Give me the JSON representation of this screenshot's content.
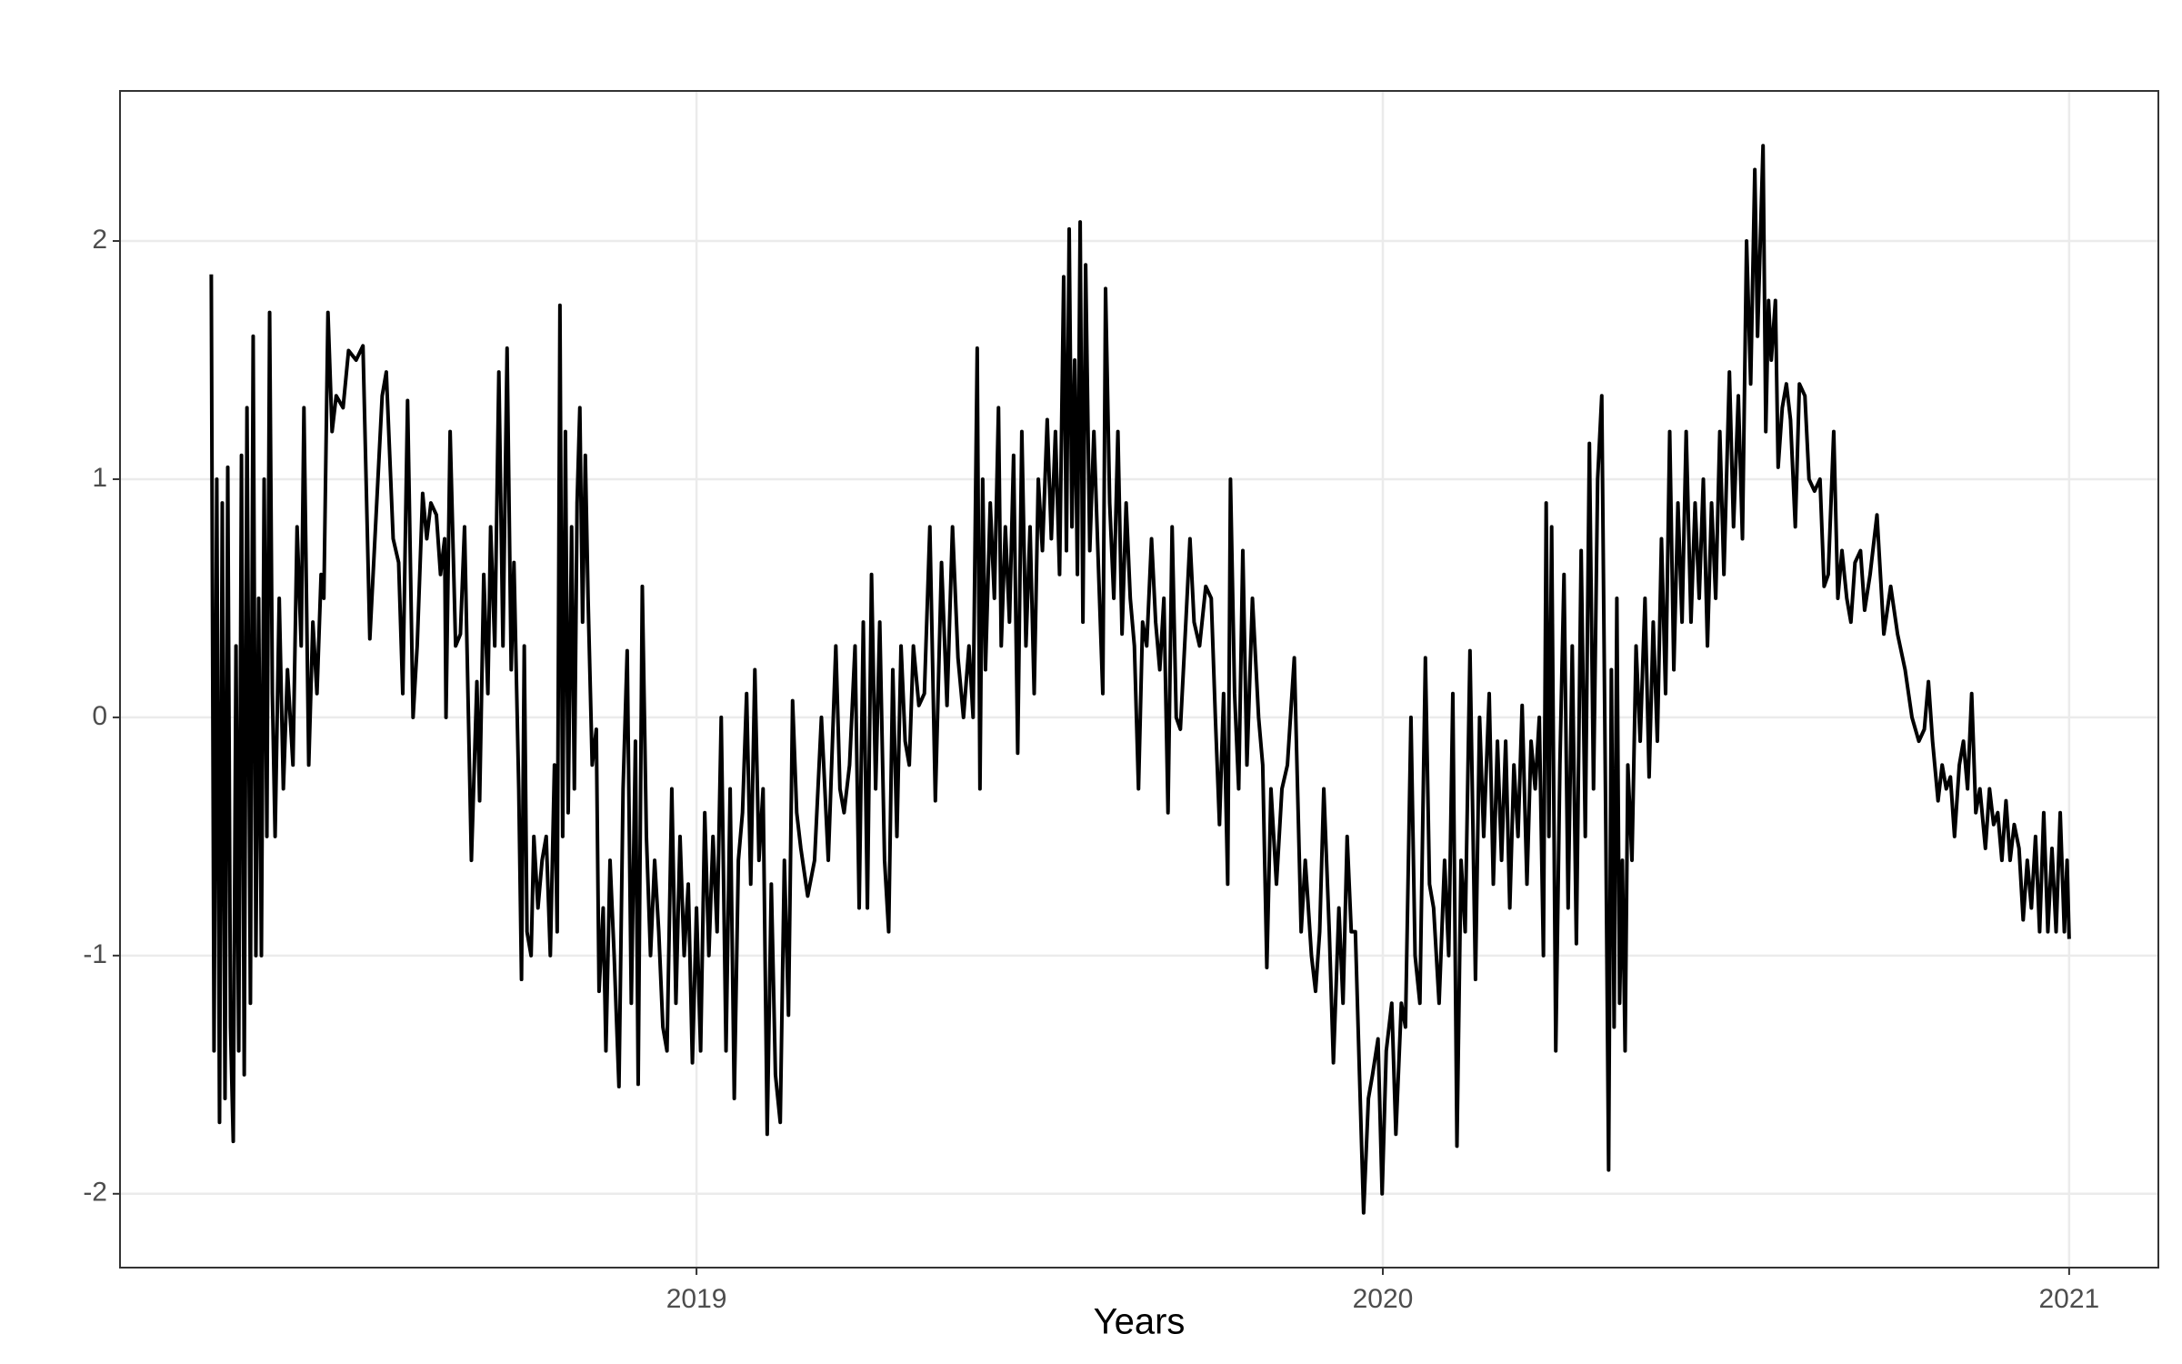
{
  "chart_data": {
    "type": "line",
    "x_label": "Years",
    "x": [
      2018.293,
      2018.297,
      2018.301,
      2018.305,
      2018.309,
      2018.313,
      2018.317,
      2018.321,
      2018.325,
      2018.329,
      2018.333,
      2018.337,
      2018.341,
      2018.345,
      2018.35,
      2018.354,
      2018.358,
      2018.362,
      2018.366,
      2018.37,
      2018.374,
      2018.378,
      2018.382,
      2018.386,
      2018.392,
      2018.398,
      2018.404,
      2018.412,
      2018.418,
      2018.424,
      2018.428,
      2018.435,
      2018.441,
      2018.447,
      2018.453,
      2018.457,
      2018.463,
      2018.469,
      2018.475,
      2018.485,
      2018.493,
      2018.504,
      2018.514,
      2018.524,
      2018.542,
      2018.548,
      2018.558,
      2018.566,
      2018.572,
      2018.579,
      2018.587,
      2018.593,
      2018.601,
      2018.607,
      2018.613,
      2018.621,
      2018.627,
      2018.633,
      2018.635,
      2018.641,
      2018.649,
      2018.656,
      2018.662,
      2018.672,
      2018.68,
      2018.684,
      2018.69,
      2018.696,
      2018.7,
      2018.706,
      2018.712,
      2018.718,
      2018.724,
      2018.73,
      2018.734,
      2018.741,
      2018.745,
      2018.749,
      2018.753,
      2018.759,
      2018.763,
      2018.769,
      2018.775,
      2018.781,
      2018.787,
      2018.793,
      2018.797,
      2018.801,
      2018.805,
      2018.809,
      2018.813,
      2018.818,
      2018.822,
      2018.826,
      2018.83,
      2018.834,
      2018.838,
      2018.842,
      2018.848,
      2018.854,
      2018.858,
      2018.864,
      2018.868,
      2018.874,
      2018.88,
      2018.887,
      2018.893,
      2018.899,
      2018.905,
      2018.911,
      2018.915,
      2018.921,
      2018.927,
      2018.933,
      2018.939,
      2018.945,
      2018.951,
      2018.957,
      2018.964,
      2018.97,
      2018.976,
      2018.982,
      2018.988,
      2018.994,
      2019.0,
      2019.006,
      2019.012,
      2019.018,
      2019.024,
      2019.03,
      2019.036,
      2019.043,
      2019.049,
      2019.055,
      2019.061,
      2019.067,
      2019.073,
      2019.079,
      2019.085,
      2019.091,
      2019.097,
      2019.103,
      2019.109,
      2019.115,
      2019.122,
      2019.128,
      2019.134,
      2019.14,
      2019.146,
      2019.152,
      2019.162,
      2019.172,
      2019.182,
      2019.192,
      2019.203,
      2019.209,
      2019.215,
      2019.223,
      2019.231,
      2019.237,
      2019.243,
      2019.249,
      2019.255,
      2019.261,
      2019.267,
      2019.274,
      2019.28,
      2019.286,
      2019.292,
      2019.298,
      2019.304,
      2019.31,
      2019.316,
      2019.324,
      2019.332,
      2019.34,
      2019.348,
      2019.357,
      2019.365,
      2019.373,
      2019.381,
      2019.389,
      2019.397,
      2019.403,
      2019.409,
      2019.413,
      2019.417,
      2019.421,
      2019.428,
      2019.434,
      2019.44,
      2019.444,
      2019.45,
      2019.456,
      2019.462,
      2019.468,
      2019.474,
      2019.48,
      2019.486,
      2019.492,
      2019.498,
      2019.504,
      2019.511,
      2019.517,
      2019.523,
      2019.529,
      2019.535,
      2019.539,
      2019.543,
      2019.547,
      2019.551,
      2019.555,
      2019.559,
      2019.563,
      2019.567,
      2019.573,
      2019.579,
      2019.586,
      2019.592,
      2019.596,
      2019.602,
      2019.608,
      2019.614,
      2019.62,
      2019.626,
      2019.632,
      2019.638,
      2019.644,
      2019.65,
      2019.656,
      2019.663,
      2019.669,
      2019.675,
      2019.681,
      2019.687,
      2019.693,
      2019.699,
      2019.705,
      2019.713,
      2019.719,
      2019.725,
      2019.733,
      2019.742,
      2019.75,
      2019.756,
      2019.762,
      2019.768,
      2019.774,
      2019.778,
      2019.784,
      2019.79,
      2019.796,
      2019.802,
      2019.81,
      2019.819,
      2019.825,
      2019.831,
      2019.837,
      2019.845,
      2019.853,
      2019.861,
      2019.871,
      2019.881,
      2019.887,
      2019.896,
      2019.902,
      2019.908,
      2019.914,
      2019.922,
      2019.928,
      2019.936,
      2019.942,
      2019.948,
      2019.954,
      2019.96,
      2019.966,
      2019.972,
      2019.979,
      2019.985,
      2019.993,
      2019.999,
      2020.005,
      2020.013,
      2020.019,
      2020.027,
      2020.033,
      2020.041,
      2020.047,
      2020.054,
      2020.062,
      2020.068,
      2020.074,
      2020.082,
      2020.09,
      2020.096,
      2020.102,
      2020.108,
      2020.114,
      2020.12,
      2020.127,
      2020.135,
      2020.141,
      2020.147,
      2020.155,
      2020.161,
      2020.167,
      2020.173,
      2020.179,
      2020.185,
      2020.191,
      2020.197,
      2020.203,
      2020.21,
      2020.216,
      2020.222,
      2020.228,
      2020.234,
      2020.238,
      2020.242,
      2020.246,
      2020.252,
      2020.258,
      2020.264,
      2020.27,
      2020.276,
      2020.282,
      2020.289,
      2020.295,
      2020.301,
      2020.307,
      2020.313,
      2020.319,
      2020.325,
      2020.329,
      2020.333,
      2020.337,
      2020.341,
      2020.345,
      2020.349,
      2020.353,
      2020.357,
      2020.363,
      2020.369,
      2020.375,
      2020.382,
      2020.388,
      2020.394,
      2020.4,
      2020.406,
      2020.412,
      2020.418,
      2020.424,
      2020.43,
      2020.436,
      2020.442,
      2020.449,
      2020.455,
      2020.461,
      2020.467,
      2020.473,
      2020.479,
      2020.485,
      2020.491,
      2020.497,
      2020.505,
      2020.511,
      2020.518,
      2020.524,
      2020.53,
      2020.536,
      2020.542,
      2020.546,
      2020.55,
      2020.554,
      2020.558,
      2020.562,
      2020.566,
      2020.572,
      2020.576,
      2020.582,
      2020.588,
      2020.594,
      2020.601,
      2020.607,
      2020.615,
      2020.621,
      2020.629,
      2020.637,
      2020.643,
      2020.649,
      2020.657,
      2020.663,
      2020.669,
      2020.676,
      2020.682,
      2020.688,
      2020.696,
      2020.702,
      2020.71,
      2020.72,
      2020.73,
      2020.74,
      2020.75,
      2020.761,
      2020.771,
      2020.781,
      2020.789,
      2020.795,
      2020.801,
      2020.809,
      2020.815,
      2020.821,
      2020.827,
      2020.833,
      2020.84,
      2020.846,
      2020.852,
      2020.858,
      2020.864,
      2020.87,
      2020.878,
      2020.884,
      2020.89,
      2020.896,
      2020.902,
      2020.908,
      2020.914,
      2020.92,
      2020.927,
      2020.933,
      2020.939,
      2020.945,
      2020.951,
      2020.957,
      2020.963,
      2020.969,
      2020.975,
      2020.981,
      2020.987,
      2020.993,
      2020.997,
      2021.0
    ],
    "series": [
      {
        "color": "#000000",
        "values": [
          1.86,
          -1.4,
          1.0,
          -1.7,
          0.9,
          -1.6,
          1.05,
          -1.3,
          -1.78,
          0.3,
          -1.4,
          1.1,
          -1.5,
          1.3,
          -1.2,
          1.6,
          -1.0,
          0.5,
          -1.0,
          1.0,
          -0.5,
          1.7,
          0.1,
          -0.5,
          0.5,
          -0.3,
          0.2,
          -0.2,
          0.8,
          0.3,
          1.3,
          -0.2,
          0.4,
          0.1,
          0.6,
          0.5,
          1.7,
          1.2,
          1.35,
          1.3,
          1.54,
          1.5,
          1.56,
          0.33,
          1.35,
          1.45,
          0.75,
          0.65,
          0.1,
          1.33,
          0.0,
          0.3,
          0.94,
          0.75,
          0.9,
          0.85,
          0.6,
          0.75,
          0.0,
          1.2,
          0.3,
          0.35,
          0.8,
          -0.6,
          0.15,
          -0.35,
          0.6,
          0.1,
          0.8,
          0.3,
          1.45,
          0.3,
          1.55,
          0.2,
          0.65,
          -0.3,
          -1.1,
          0.3,
          -0.9,
          -1.0,
          -0.5,
          -0.8,
          -0.6,
          -0.5,
          -1.0,
          -0.2,
          -0.9,
          1.73,
          -0.5,
          1.2,
          -0.4,
          0.8,
          -0.3,
          0.9,
          1.3,
          0.4,
          1.1,
          0.5,
          -0.2,
          -0.05,
          -1.15,
          -0.8,
          -1.4,
          -0.6,
          -1.0,
          -1.55,
          -0.3,
          0.28,
          -1.2,
          -0.1,
          -1.54,
          0.55,
          -0.5,
          -1.0,
          -0.6,
          -0.9,
          -1.3,
          -1.4,
          -0.3,
          -1.2,
          -0.5,
          -1.0,
          -0.7,
          -1.45,
          -0.8,
          -1.4,
          -0.4,
          -1.0,
          -0.5,
          -0.9,
          0.0,
          -1.4,
          -0.3,
          -1.6,
          -0.6,
          -0.4,
          0.1,
          -0.7,
          0.2,
          -0.6,
          -0.3,
          -1.75,
          -0.7,
          -1.5,
          -1.7,
          -0.6,
          -1.25,
          0.07,
          -0.4,
          -0.55,
          -0.75,
          -0.6,
          0.0,
          -0.6,
          0.3,
          -0.3,
          -0.4,
          -0.2,
          0.3,
          -0.8,
          0.4,
          -0.8,
          0.6,
          -0.3,
          0.4,
          -0.6,
          -0.9,
          0.2,
          -0.5,
          0.3,
          -0.1,
          -0.2,
          0.3,
          0.05,
          0.1,
          0.8,
          -0.35,
          0.65,
          0.05,
          0.8,
          0.25,
          0.0,
          0.3,
          0.0,
          1.55,
          -0.3,
          1.0,
          0.2,
          0.9,
          0.5,
          1.3,
          0.3,
          0.8,
          0.4,
          1.1,
          -0.15,
          1.2,
          0.3,
          0.8,
          0.1,
          1.0,
          0.7,
          1.25,
          0.75,
          1.2,
          0.6,
          1.85,
          0.7,
          2.05,
          0.8,
          1.5,
          0.6,
          2.08,
          0.4,
          1.9,
          0.7,
          1.2,
          0.6,
          0.1,
          1.8,
          0.9,
          0.5,
          1.2,
          0.35,
          0.9,
          0.5,
          0.3,
          -0.3,
          0.4,
          0.3,
          0.75,
          0.4,
          0.2,
          0.5,
          -0.4,
          0.8,
          0.0,
          -0.05,
          0.4,
          0.75,
          0.4,
          0.3,
          0.55,
          0.5,
          0.0,
          -0.45,
          0.1,
          -0.7,
          1.0,
          0.1,
          -0.3,
          0.7,
          -0.2,
          0.5,
          0.0,
          -0.2,
          -1.05,
          -0.3,
          -0.7,
          -0.3,
          -0.2,
          0.25,
          -0.9,
          -0.6,
          -1.0,
          -1.15,
          -0.9,
          -0.3,
          -0.9,
          -1.45,
          -0.8,
          -1.2,
          -0.5,
          -0.9,
          -0.9,
          -1.5,
          -2.08,
          -1.6,
          -1.5,
          -1.35,
          -2.0,
          -1.4,
          -1.2,
          -1.75,
          -1.2,
          -1.3,
          0.0,
          -1.0,
          -1.2,
          0.25,
          -0.7,
          -0.8,
          -1.2,
          -0.6,
          -1.0,
          0.1,
          -1.8,
          -0.6,
          -0.9,
          0.28,
          -1.1,
          0.0,
          -0.5,
          0.1,
          -0.7,
          -0.1,
          -0.6,
          -0.1,
          -0.8,
          -0.2,
          -0.5,
          0.05,
          -0.7,
          -0.1,
          -0.3,
          0.0,
          -1.0,
          0.9,
          -0.5,
          0.8,
          -1.4,
          -0.2,
          0.6,
          -0.8,
          0.3,
          -0.95,
          0.7,
          -0.5,
          1.15,
          -0.3,
          1.0,
          1.35,
          -0.5,
          -1.9,
          0.2,
          -1.3,
          0.5,
          -1.2,
          -0.6,
          -1.4,
          -0.2,
          -0.6,
          0.3,
          -0.1,
          0.5,
          -0.25,
          0.4,
          -0.1,
          0.75,
          0.1,
          1.2,
          0.2,
          0.9,
          0.4,
          1.2,
          0.4,
          0.9,
          0.5,
          1.0,
          0.3,
          0.9,
          0.5,
          1.2,
          0.6,
          1.45,
          0.8,
          1.35,
          0.75,
          2.0,
          1.4,
          2.3,
          1.6,
          2.0,
          2.4,
          1.2,
          1.75,
          1.5,
          1.75,
          1.05,
          1.3,
          1.4,
          1.25,
          0.8,
          1.4,
          1.35,
          1.0,
          0.95,
          1.0,
          0.55,
          0.6,
          1.2,
          0.5,
          0.7,
          0.5,
          0.4,
          0.65,
          0.7,
          0.45,
          0.6,
          0.85,
          0.35,
          0.55,
          0.35,
          0.2,
          0.0,
          -0.1,
          -0.05,
          0.15,
          -0.1,
          -0.35,
          -0.2,
          -0.3,
          -0.25,
          -0.5,
          -0.2,
          -0.1,
          -0.3,
          0.1,
          -0.4,
          -0.3,
          -0.55,
          -0.3,
          -0.45,
          -0.4,
          -0.6,
          -0.35,
          -0.6,
          -0.45,
          -0.55,
          -0.85,
          -0.6,
          -0.8,
          -0.5,
          -0.9,
          -0.4,
          -0.9,
          -0.55,
          -0.9,
          -0.4,
          -0.9,
          -0.6,
          -0.93
        ]
      }
    ],
    "xlim": [
      2018.16,
      2021.13
    ],
    "xticks": [
      2019,
      2020,
      2021
    ],
    "ylim": [
      -2.31,
      2.63
    ],
    "yticks": [
      -2,
      -1,
      0,
      1,
      2
    ],
    "grid": true
  }
}
